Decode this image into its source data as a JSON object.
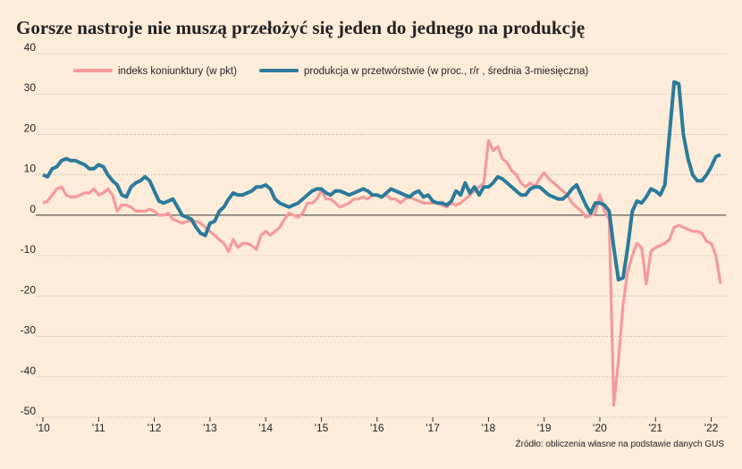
{
  "chart_data": {
    "type": "line",
    "title": "Gorsze nastroje nie muszą przełożyć się jeden do jednego na produkcję",
    "source": "Źródło: obliczenia własne na podstawie danych GUS",
    "categories": [
      "'10",
      null,
      null,
      null,
      null,
      null,
      null,
      null,
      null,
      null,
      null,
      null,
      "'11",
      null,
      null,
      null,
      null,
      null,
      null,
      null,
      null,
      null,
      null,
      null,
      "'12",
      null,
      null,
      null,
      null,
      null,
      null,
      null,
      null,
      null,
      null,
      null,
      "'13",
      null,
      null,
      null,
      null,
      null,
      null,
      null,
      null,
      null,
      null,
      null,
      "'14",
      null,
      null,
      null,
      null,
      null,
      null,
      null,
      null,
      null,
      null,
      null,
      "'15",
      null,
      null,
      null,
      null,
      null,
      null,
      null,
      null,
      null,
      null,
      null,
      "'16",
      null,
      null,
      null,
      null,
      null,
      null,
      null,
      null,
      null,
      null,
      null,
      "'17",
      null,
      null,
      null,
      null,
      null,
      null,
      null,
      null,
      null,
      null,
      null,
      "'18",
      null,
      null,
      null,
      null,
      null,
      null,
      null,
      null,
      null,
      null,
      null,
      "'19",
      null,
      null,
      null,
      null,
      null,
      null,
      null,
      null,
      null,
      null,
      null,
      "'20",
      null,
      null,
      null,
      null,
      null,
      null,
      null,
      null,
      null,
      null,
      null,
      "'21",
      null,
      null,
      null,
      null,
      null,
      null,
      null,
      null,
      null,
      null,
      null,
      "'22",
      null,
      null
    ],
    "series": [
      {
        "name": "indeks koniunktury (w pkt)",
        "color": "#f49a9a",
        "values": [
          3,
          3.5,
          5,
          6.5,
          7,
          5,
          4.5,
          4.5,
          5,
          5.5,
          5.5,
          6.5,
          5,
          5.5,
          6.5,
          5,
          1,
          2.5,
          2.5,
          2,
          1,
          1,
          1,
          1.5,
          1,
          0,
          0,
          0.5,
          -1,
          -1.5,
          -2,
          -1.5,
          -1.5,
          -1.5,
          -2,
          -3,
          -4,
          -5,
          -6,
          -7,
          -9,
          -6,
          -8,
          -7,
          -7,
          -7.5,
          -8.5,
          -5,
          -4,
          -5,
          -4,
          -3,
          -1,
          0.5,
          0,
          -0.5,
          0.5,
          3,
          3,
          4,
          6,
          4,
          4,
          3,
          2,
          2.5,
          3,
          4,
          4,
          4.5,
          4,
          5,
          5,
          4.5,
          5,
          4,
          4,
          3,
          4,
          4.5,
          4,
          3.5,
          3,
          3,
          3,
          3,
          2.5,
          2,
          3,
          2.5,
          3,
          4,
          5,
          6,
          7,
          8,
          18.5,
          16,
          17,
          14,
          13,
          11,
          10,
          8,
          7,
          8,
          7,
          9,
          10.5,
          9,
          8,
          7,
          6,
          5,
          3,
          2,
          1,
          -0.5,
          0,
          0.5,
          5,
          1,
          -1,
          -47,
          -36,
          -22,
          -14,
          -10,
          -7,
          -8,
          -17,
          -9,
          -8,
          -7.5,
          -7,
          -6,
          -3,
          -2.5,
          -3,
          -3.5,
          -4,
          -4,
          -4.5,
          -6.5,
          -7,
          -10,
          -17
        ]
      },
      {
        "name": "produkcja w przetwórstwie (w proc., r/r , średnia 3-miesięczna)",
        "color": "#2b7b9b",
        "values": [
          10,
          9.5,
          11.5,
          12,
          13.5,
          14,
          13.5,
          13.5,
          13,
          12.5,
          11.5,
          11.5,
          12.5,
          12,
          10,
          8.5,
          7.5,
          5,
          4.5,
          7,
          8,
          8.5,
          9.5,
          8.5,
          6,
          3.5,
          3,
          3.5,
          4,
          2,
          0,
          -0.5,
          -1,
          -3,
          -4.5,
          -5,
          -2,
          -1.5,
          1,
          2,
          4,
          5.5,
          5,
          5,
          5.5,
          6,
          7,
          7,
          7.5,
          6.5,
          4,
          3,
          2.5,
          2,
          2.5,
          3,
          4,
          5,
          6,
          6.5,
          6.5,
          5.5,
          5,
          6,
          6,
          5.5,
          5,
          5.5,
          6,
          6.5,
          6,
          5,
          5,
          4.5,
          5.5,
          6.5,
          6,
          5.5,
          5,
          4.5,
          5.5,
          6,
          4.5,
          5,
          3.5,
          3,
          3,
          2.5,
          3.5,
          6,
          5,
          8,
          5.5,
          7,
          5,
          7,
          7,
          8,
          9.5,
          9,
          8,
          7,
          6,
          5,
          5,
          6.5,
          7,
          7,
          6,
          5,
          4.5,
          4,
          4,
          5,
          6.5,
          7.5,
          5,
          2.5,
          0.5,
          3,
          3,
          2.5,
          1,
          -8,
          -16,
          -15.5,
          -8,
          1,
          3.5,
          3,
          4.5,
          6.5,
          6,
          5,
          7.5,
          20,
          33,
          32.5,
          20,
          14,
          10,
          8.5,
          8.5,
          10,
          12,
          14.5,
          15
        ]
      }
    ],
    "ylim": [
      -50,
      40
    ],
    "yticks": [
      -50,
      -40,
      -30,
      -20,
      -10,
      0,
      10,
      20,
      30,
      40
    ],
    "grid": true
  }
}
